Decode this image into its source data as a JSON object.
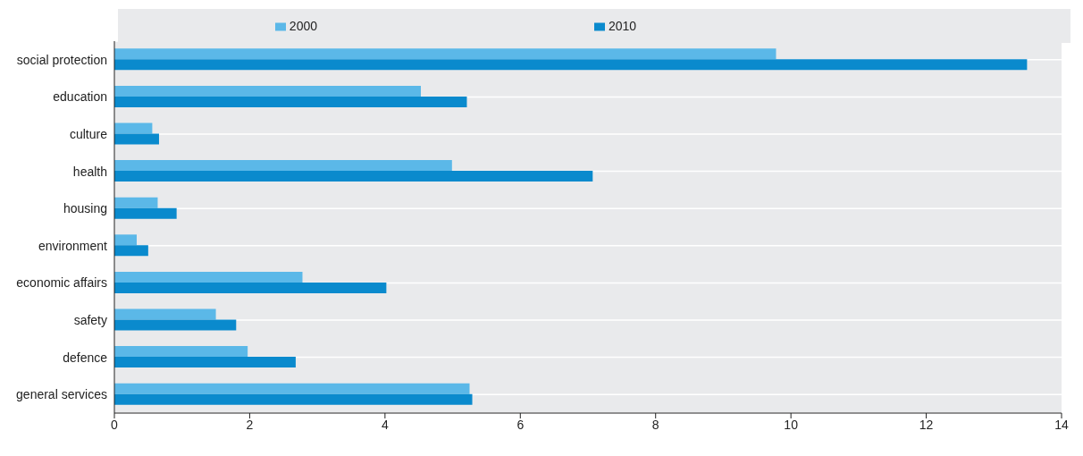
{
  "chart_data": {
    "type": "bar",
    "orientation": "horizontal",
    "categories": [
      "social protection",
      "education",
      "culture",
      "health",
      "housing",
      "environment",
      "economic affairs",
      "safety",
      "defence",
      "general services"
    ],
    "series": [
      {
        "name": "2000",
        "color": "#5bb8e8",
        "values": [
          9.78,
          4.53,
          0.56,
          4.99,
          0.64,
          0.33,
          2.78,
          1.5,
          1.97,
          5.25
        ]
      },
      {
        "name": "2010",
        "color": "#0a8acd",
        "values": [
          13.49,
          5.21,
          0.66,
          7.07,
          0.92,
          0.5,
          4.02,
          1.8,
          2.68,
          5.29
        ]
      }
    ],
    "xlim": [
      0,
      14
    ],
    "xticks": [
      0,
      2,
      4,
      6,
      8,
      10,
      12,
      14
    ],
    "grid": "y",
    "legend": "top"
  }
}
